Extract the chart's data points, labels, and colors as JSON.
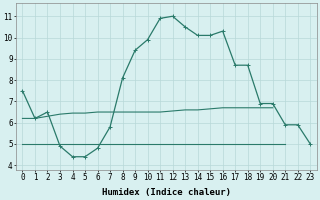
{
  "xlabel": "Humidex (Indice chaleur)",
  "x": [
    0,
    1,
    2,
    3,
    4,
    5,
    6,
    7,
    8,
    9,
    10,
    11,
    12,
    13,
    14,
    15,
    16,
    17,
    18,
    19,
    20,
    21,
    22,
    23
  ],
  "line_curve": [
    7.5,
    6.2,
    6.5,
    4.9,
    4.4,
    4.4,
    4.8,
    5.8,
    8.1,
    9.4,
    9.9,
    10.9,
    11.0,
    10.5,
    10.1,
    10.1,
    10.3,
    8.7,
    8.7,
    6.9,
    6.9,
    5.9,
    5.9,
    5.0
  ],
  "line_flat1_x": [
    0,
    1,
    2,
    3,
    4,
    5,
    6,
    7,
    8,
    9,
    10,
    11,
    12,
    13,
    14,
    15,
    16,
    17,
    18,
    19,
    20
  ],
  "line_flat1_y": [
    6.2,
    6.2,
    6.3,
    6.4,
    6.45,
    6.45,
    6.5,
    6.5,
    6.5,
    6.5,
    6.5,
    6.5,
    6.55,
    6.6,
    6.6,
    6.65,
    6.7,
    6.7,
    6.7,
    6.7,
    6.7
  ],
  "line_flat2_x": [
    0,
    1,
    2,
    3,
    4,
    5,
    6,
    7,
    8,
    9,
    10,
    11,
    12,
    13,
    14,
    15,
    16,
    17,
    18,
    19,
    20,
    21
  ],
  "line_flat2_y": [
    5.0,
    5.0,
    5.0,
    5.0,
    5.0,
    5.0,
    5.0,
    5.0,
    5.0,
    5.0,
    5.0,
    5.0,
    5.0,
    5.0,
    5.0,
    5.0,
    5.0,
    5.0,
    5.0,
    5.0,
    5.0,
    5.0
  ],
  "color": "#2a7a6a",
  "bg_color": "#d8f0f0",
  "grid_color": "#b8d8d8",
  "ylim": [
    3.8,
    11.6
  ],
  "yticks": [
    4,
    5,
    6,
    7,
    8,
    9,
    10,
    11
  ],
  "xlim": [
    -0.5,
    23.5
  ],
  "tick_fontsize": 5.5,
  "label_fontsize": 6.5
}
